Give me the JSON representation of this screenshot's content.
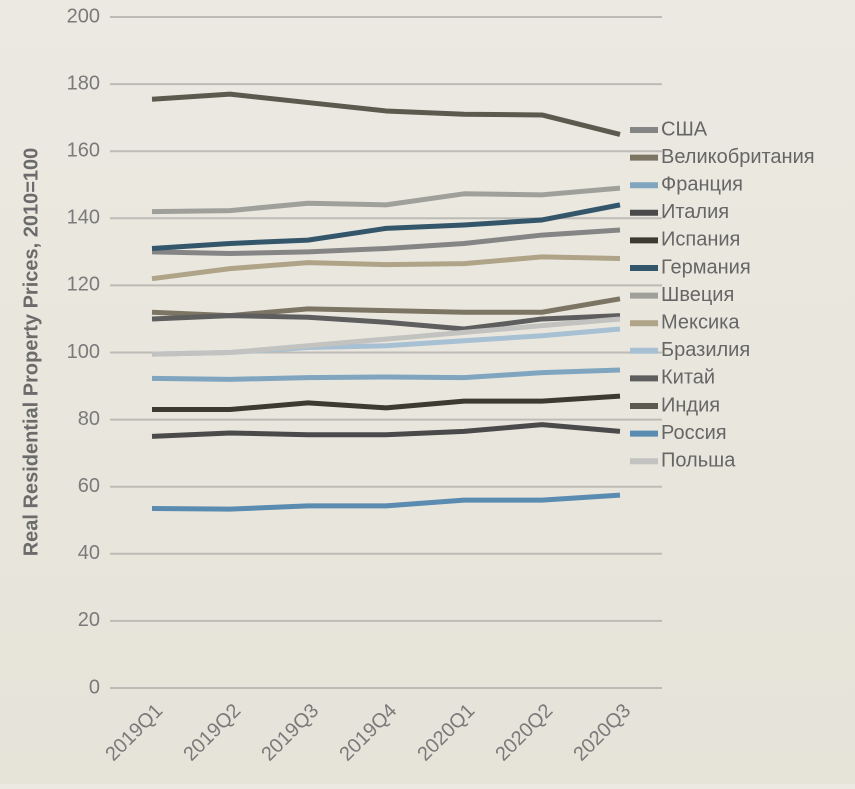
{
  "chart_data": {
    "type": "line",
    "y_label": "Real Residential Property Prices, 2010=100",
    "categories": [
      "2019Q1",
      "2019Q2",
      "2019Q3",
      "2019Q4",
      "2020Q1",
      "2020Q2",
      "2020Q3"
    ],
    "ylim": [
      0,
      200
    ],
    "yticks": [
      0,
      20,
      40,
      60,
      80,
      100,
      120,
      140,
      160,
      180,
      200
    ],
    "grid": true,
    "legend": "right",
    "series": [
      {
        "name": "США",
        "color": "#858585",
        "values": [
          130,
          129.5,
          130,
          131,
          132.5,
          135,
          136.5
        ]
      },
      {
        "name": "Великобритания",
        "color": "#7d7563",
        "values": [
          112,
          111,
          113,
          112.5,
          112,
          112,
          116
        ]
      },
      {
        "name": "Франция",
        "color": "#7fa5bf",
        "values": [
          92.3,
          92,
          92.5,
          92.7,
          92.5,
          94,
          94.8
        ]
      },
      {
        "name": "Италия",
        "color": "#4a4a4a",
        "values": [
          75,
          76,
          75.5,
          75.5,
          76.5,
          78.5,
          76.5
        ]
      },
      {
        "name": "Испания",
        "color": "#3d3b30",
        "values": [
          83,
          83,
          85,
          83.5,
          85.5,
          85.5,
          87
        ]
      },
      {
        "name": "Германия",
        "color": "#34566b",
        "values": [
          131,
          132.5,
          133.5,
          137,
          138,
          139.5,
          144
        ]
      },
      {
        "name": "Швеция",
        "color": "#a0a09a",
        "values": [
          142,
          142.3,
          144.5,
          144,
          147.3,
          147,
          149
        ]
      },
      {
        "name": "Мексика",
        "color": "#b0a488",
        "values": [
          122,
          125,
          126.8,
          126.2,
          126.5,
          128.5,
          128
        ]
      },
      {
        "name": "Бразилия",
        "color": "#a7c0d3",
        "values": [
          99.5,
          100,
          101.5,
          102,
          103.5,
          105,
          107
        ]
      },
      {
        "name": "Китай",
        "color": "#5e5e5e",
        "values": [
          110,
          111,
          110.5,
          109,
          107,
          110,
          111
        ]
      },
      {
        "name": "Индия",
        "color": "#5c5a4e",
        "values": [
          175.5,
          177,
          174.5,
          172,
          171,
          170.8,
          165
        ]
      },
      {
        "name": "Россия",
        "color": "#5a8bb0",
        "values": [
          53.5,
          53.3,
          54.3,
          54.3,
          56,
          56,
          57.5
        ]
      },
      {
        "name": "Польша",
        "color": "#c2c2c0",
        "values": [
          99.5,
          100,
          102,
          104,
          106,
          108,
          110
        ]
      }
    ]
  }
}
